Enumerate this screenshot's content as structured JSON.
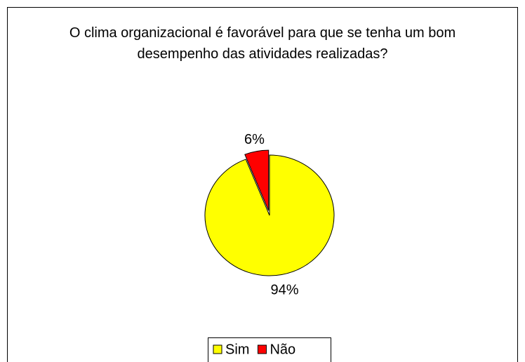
{
  "chart_data": {
    "type": "pie",
    "title": "O clima organizacional é favorável para que se tenha um bom desempenho das atividades realizadas?",
    "categories": [
      "Sim",
      "Não"
    ],
    "values": [
      94,
      6
    ],
    "value_labels": [
      "94%",
      "6%"
    ],
    "colors": [
      "#ffff00",
      "#ff0000"
    ],
    "legend": "bottom"
  }
}
